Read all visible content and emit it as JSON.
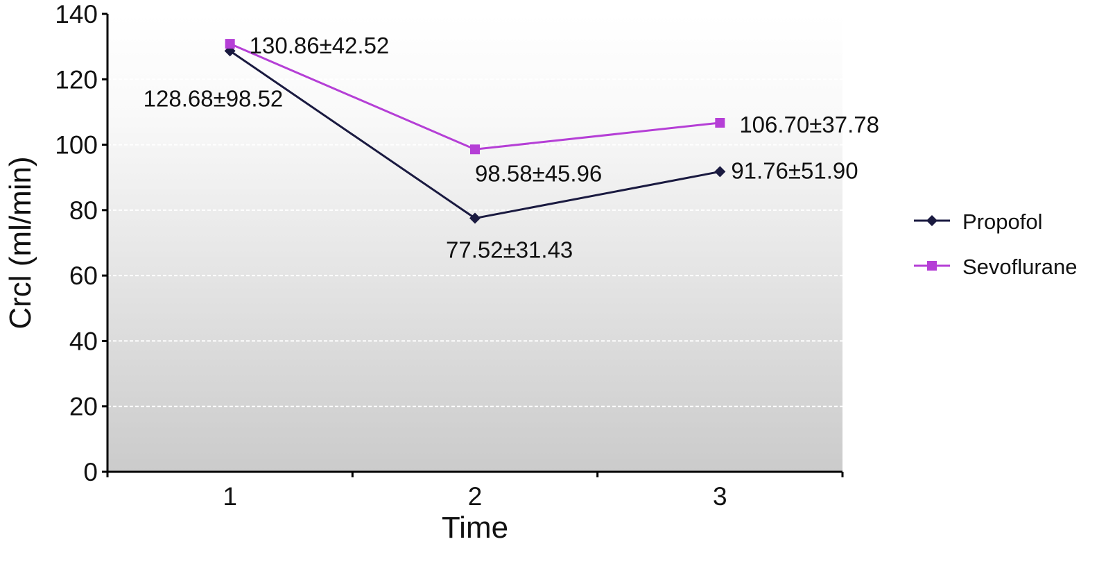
{
  "chart_data": {
    "type": "line",
    "xlabel": "Time",
    "ylabel": "Crcl (ml/min)",
    "x": [
      1,
      2,
      3
    ],
    "ylim": [
      0,
      140
    ],
    "yticks": [
      0,
      20,
      40,
      60,
      80,
      100,
      120,
      140
    ],
    "grid": "dashed horizontal",
    "legend_position": "right",
    "series": [
      {
        "name": "Propofol",
        "values": [
          128.68,
          77.52,
          91.76
        ],
        "labels": [
          "128.68±98.52",
          "77.52±31.43",
          "91.76±51.90"
        ],
        "color": "#1a1a40",
        "marker": "diamond"
      },
      {
        "name": "Sevoflurane",
        "values": [
          130.86,
          98.58,
          106.7
        ],
        "labels": [
          "130.86±42.52",
          "98.58±45.96",
          "106.70±37.78"
        ],
        "color": "#b53fd6",
        "marker": "square"
      }
    ]
  }
}
